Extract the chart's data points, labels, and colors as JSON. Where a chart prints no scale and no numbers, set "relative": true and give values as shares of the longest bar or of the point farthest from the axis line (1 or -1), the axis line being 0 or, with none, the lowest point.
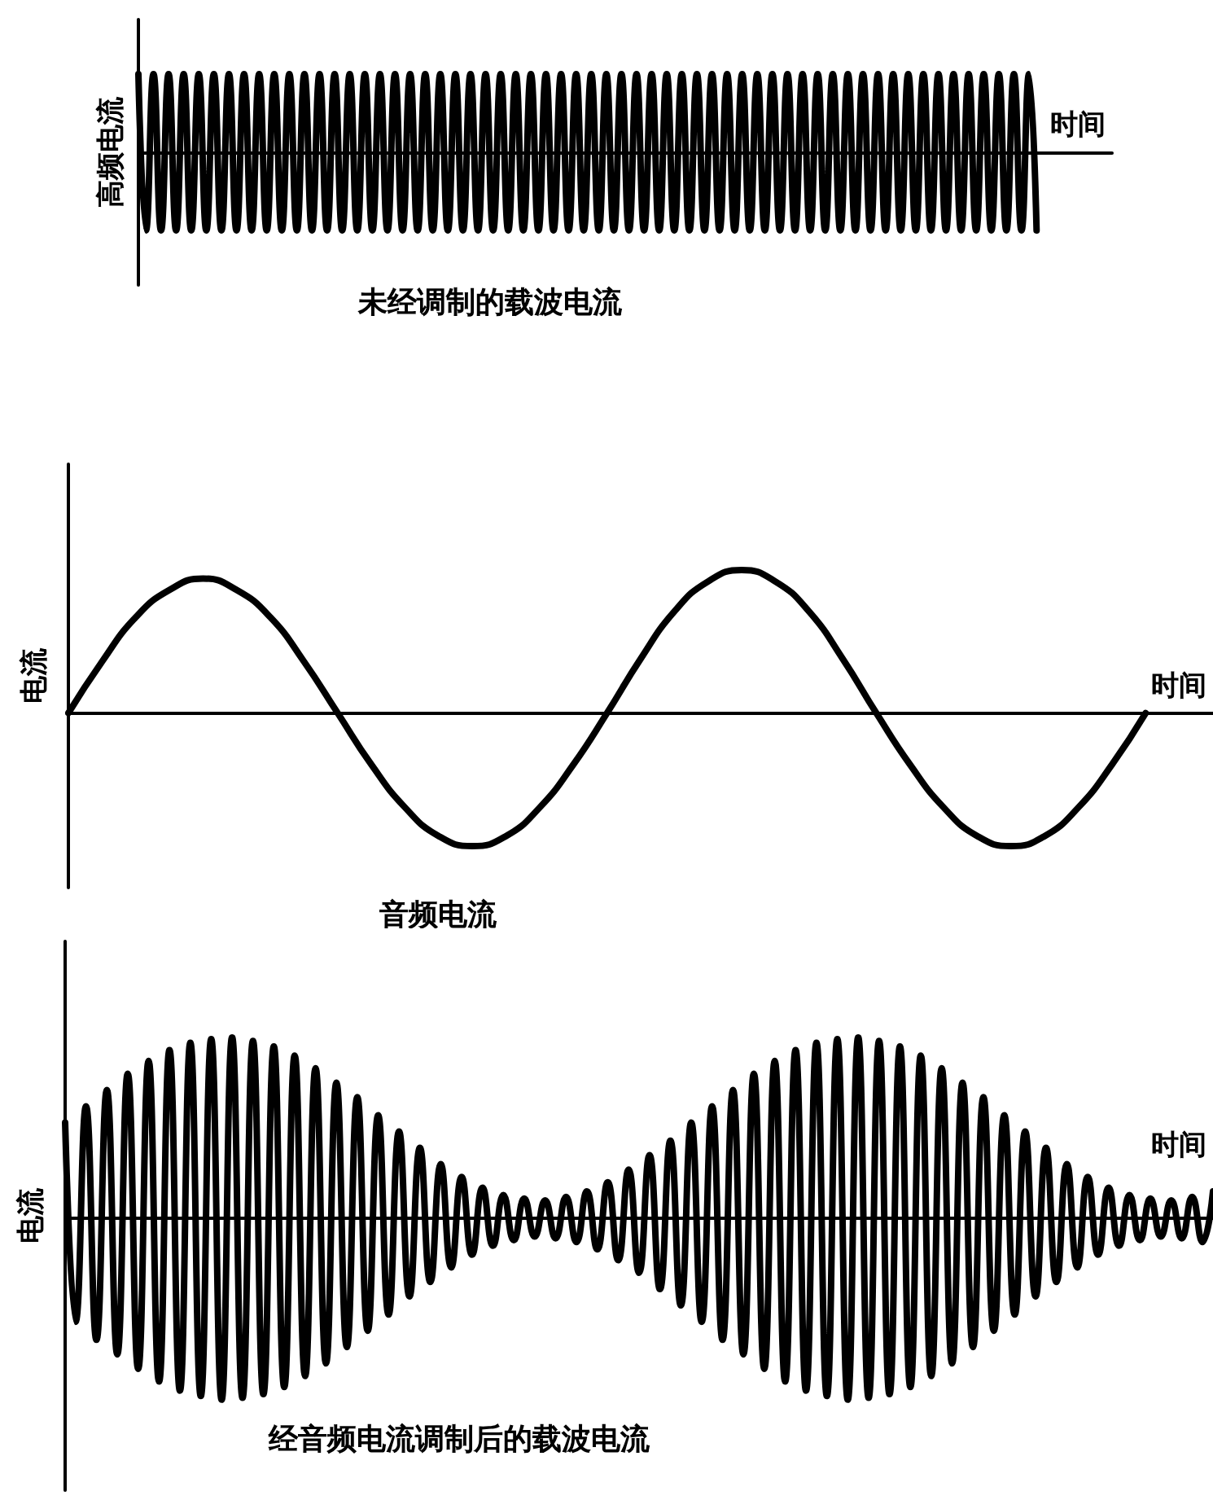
{
  "chart_data": [
    {
      "type": "line",
      "title": "未经调制的载波电流",
      "ylabel": "高频电流",
      "xlabel": "时间",
      "relative": true,
      "tick_labels": false,
      "marker": "none",
      "categories": [
        null,
        null,
        null,
        null,
        null,
        null,
        null,
        null,
        null,
        null,
        null,
        null,
        null,
        null,
        null,
        null,
        null,
        null,
        null,
        null,
        null,
        null,
        null,
        null,
        null,
        null,
        null,
        null,
        null,
        null,
        null,
        null,
        null,
        null,
        null,
        null,
        null,
        null,
        null,
        null,
        null,
        null,
        null,
        null,
        null,
        null,
        null,
        null,
        null,
        null,
        null,
        null,
        null,
        null,
        null,
        null,
        null,
        null,
        null,
        null,
        null,
        null,
        null,
        null,
        null,
        null,
        null,
        null,
        null,
        null,
        null,
        null,
        null,
        null,
        null,
        null,
        null,
        null,
        null,
        null,
        null,
        null,
        null,
        null,
        null,
        null,
        null,
        null,
        null,
        null,
        null,
        null,
        null,
        null,
        null,
        null,
        null,
        null,
        null,
        null,
        null,
        null,
        null,
        null,
        null,
        null,
        null,
        null,
        null,
        null,
        null,
        null,
        null,
        null,
        null,
        null,
        null,
        null,
        null,
        null,
        null,
        null,
        null,
        null,
        null,
        null,
        null,
        null,
        null,
        null
      ],
      "series": [
        {
          "color": "#000000",
          "values": [
            1,
            -1,
            1,
            -1,
            1,
            -1,
            1,
            -1,
            1,
            -1,
            1,
            -1,
            1,
            -1,
            1,
            -1,
            1,
            -1,
            1,
            -1,
            1,
            -1,
            1,
            -1,
            1,
            -1,
            1,
            -1,
            1,
            -1,
            1,
            -1,
            1,
            -1,
            1,
            -1,
            1,
            -1,
            1,
            -1,
            1,
            -1,
            1,
            -1,
            1,
            -1,
            1,
            -1,
            1,
            -1,
            1,
            -1,
            1,
            -1,
            1,
            -1,
            1,
            -1,
            1,
            -1,
            1,
            -1,
            1,
            -1,
            1,
            -1,
            1,
            -1,
            1,
            -1,
            1,
            -1,
            1,
            -1,
            1,
            -1,
            1,
            -1,
            1,
            -1,
            1,
            -1,
            1,
            -1,
            1,
            -1,
            1,
            -1,
            1,
            -1,
            1,
            -1,
            1,
            -1,
            1,
            -1,
            1,
            -1,
            1,
            -1,
            1,
            -1,
            1,
            -1,
            1,
            -1,
            1,
            -1,
            1,
            -1,
            1,
            -1,
            1,
            -1,
            1,
            -1,
            1,
            -1,
            1,
            -1,
            null,
            null,
            null,
            null,
            null,
            null,
            null,
            null,
            null,
            null
          ]
        }
      ]
    },
    {
      "type": "line",
      "title": "音频电流",
      "ylabel": "电流",
      "xlabel": "时间",
      "relative": true,
      "tick_labels": false,
      "marker": "none",
      "categories": [
        null,
        null,
        null,
        null,
        null,
        null,
        null,
        null,
        null,
        null,
        null,
        null,
        null,
        null,
        null,
        null,
        null,
        null,
        null,
        null,
        null,
        null,
        null,
        null,
        null,
        null,
        null,
        null,
        null,
        null,
        null,
        null,
        null,
        null,
        null
      ],
      "series": [
        {
          "color": "#000000",
          "values": [
            0,
            0.36,
            0.67,
            0.86,
            0.94,
            0.86,
            0.67,
            0.36,
            0,
            -0.36,
            -0.66,
            -0.86,
            -0.93,
            -0.86,
            -0.66,
            -0.36,
            0,
            0.38,
            0.71,
            0.92,
            1,
            0.92,
            0.71,
            0.38,
            0,
            -0.36,
            -0.66,
            -0.86,
            -0.93,
            -0.86,
            -0.66,
            -0.36,
            0,
            null,
            null
          ]
        }
      ]
    },
    {
      "type": "line",
      "title": "经音频电流调制后的载波电流",
      "ylabel": "电流",
      "xlabel": "时间",
      "relative": true,
      "tick_labels": false,
      "marker": "none",
      "categories": [
        null,
        null,
        null,
        null,
        null,
        null,
        null,
        null,
        null,
        null,
        null,
        null,
        null,
        null,
        null,
        null,
        null,
        null,
        null,
        null,
        null,
        null,
        null,
        null,
        null,
        null,
        null,
        null,
        null,
        null,
        null,
        null,
        null,
        null,
        null,
        null,
        null,
        null,
        null,
        null,
        null,
        null,
        null,
        null,
        null,
        null,
        null,
        null,
        null,
        null,
        null,
        null,
        null,
        null,
        null,
        null,
        null,
        null,
        null,
        null,
        null,
        null,
        null,
        null,
        null,
        null,
        null,
        null,
        null,
        null,
        null,
        null,
        null,
        null,
        null,
        null,
        null,
        null,
        null,
        null,
        null,
        null,
        null,
        null,
        null,
        null,
        null,
        null,
        null,
        null,
        null,
        null,
        null,
        null,
        null,
        null,
        null,
        null,
        null,
        null,
        null,
        null,
        null,
        null,
        null,
        null,
        null,
        null,
        null,
        null,
        null
      ],
      "series": [
        {
          "color": "#000000",
          "values": [
            0.53,
            -0.57,
            0.62,
            -0.67,
            0.71,
            -0.75,
            0.8,
            -0.83,
            0.87,
            -0.9,
            0.93,
            -0.95,
            0.97,
            -0.98,
            0.99,
            -1,
            1,
            -0.99,
            0.98,
            -0.97,
            0.95,
            -0.93,
            0.9,
            -0.87,
            0.83,
            -0.8,
            0.75,
            -0.71,
            0.67,
            -0.62,
            0.57,
            -0.53,
            0.48,
            -0.43,
            0.39,
            -0.35,
            0.3,
            -0.27,
            0.23,
            -0.2,
            0.17,
            -0.15,
            0.13,
            -0.12,
            0.11,
            -0.1,
            0.1,
            -0.11,
            0.12,
            -0.13,
            0.15,
            -0.17,
            0.2,
            -0.23,
            0.27,
            -0.3,
            0.35,
            -0.39,
            0.43,
            -0.48,
            0.53,
            -0.57,
            0.62,
            -0.67,
            0.71,
            -0.75,
            0.8,
            -0.83,
            0.87,
            -0.9,
            0.93,
            -0.95,
            0.97,
            -0.98,
            0.99,
            -1,
            1,
            -0.99,
            0.98,
            -0.97,
            0.95,
            -0.93,
            0.9,
            -0.87,
            0.83,
            -0.8,
            0.75,
            -0.71,
            0.67,
            -0.62,
            0.57,
            -0.53,
            0.48,
            -0.43,
            0.39,
            -0.35,
            0.3,
            -0.27,
            0.23,
            -0.2,
            0.17,
            -0.15,
            0.13,
            -0.12,
            0.11,
            -0.1,
            0.1,
            -0.11,
            0.12,
            -0.13,
            0.15
          ]
        }
      ]
    }
  ]
}
